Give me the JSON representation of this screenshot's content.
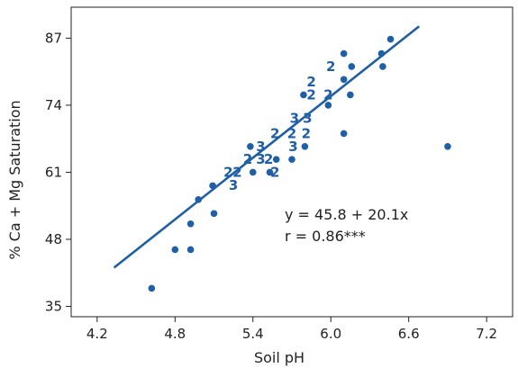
{
  "chart_data": {
    "type": "scatter",
    "title": "",
    "xlabel": "Soil pH",
    "ylabel": "% Ca + Mg Saturation",
    "xlim": [
      4.0,
      7.4
    ],
    "ylim": [
      33,
      93
    ],
    "xticks": [
      4.2,
      4.8,
      5.4,
      6.0,
      6.6,
      7.2
    ],
    "xtick_labels": [
      "4.2",
      "4.8",
      "5.4",
      "6.0",
      "6.6",
      "7.2"
    ],
    "yticks": [
      35,
      48,
      61,
      74,
      87
    ],
    "ytick_labels": [
      "35",
      "48",
      "61",
      "74",
      "87"
    ],
    "grid": false,
    "colors": {
      "marker": "#1f5fa6",
      "line": "#1f5fa6",
      "axis": "#222222"
    },
    "points": [
      {
        "x": 4.62,
        "y": 38.5
      },
      {
        "x": 4.8,
        "y": 46.0
      },
      {
        "x": 4.92,
        "y": 46.0
      },
      {
        "x": 4.92,
        "y": 51.0
      },
      {
        "x": 4.98,
        "y": 55.7
      },
      {
        "x": 5.09,
        "y": 58.4
      },
      {
        "x": 5.1,
        "y": 53.0
      },
      {
        "x": 5.38,
        "y": 66.0
      },
      {
        "x": 5.4,
        "y": 61.0
      },
      {
        "x": 5.53,
        "y": 61.0
      },
      {
        "x": 5.58,
        "y": 63.5
      },
      {
        "x": 5.7,
        "y": 63.5
      },
      {
        "x": 5.79,
        "y": 76.0
      },
      {
        "x": 5.8,
        "y": 66.0
      },
      {
        "x": 5.98,
        "y": 74.0
      },
      {
        "x": 6.1,
        "y": 68.5
      },
      {
        "x": 6.1,
        "y": 84.0
      },
      {
        "x": 6.1,
        "y": 79.0
      },
      {
        "x": 6.15,
        "y": 76.0
      },
      {
        "x": 6.16,
        "y": 81.5
      },
      {
        "x": 6.39,
        "y": 84.0
      },
      {
        "x": 6.4,
        "y": 81.5
      },
      {
        "x": 6.46,
        "y": 86.8
      },
      {
        "x": 6.9,
        "y": 66.0
      }
    ],
    "count_labels": [
      {
        "x": 5.21,
        "y": 61.0,
        "text": "2"
      },
      {
        "x": 5.28,
        "y": 61.0,
        "text": "2"
      },
      {
        "x": 5.25,
        "y": 58.5,
        "text": "3"
      },
      {
        "x": 5.36,
        "y": 63.5,
        "text": "2"
      },
      {
        "x": 5.46,
        "y": 66.0,
        "text": "3"
      },
      {
        "x": 5.46,
        "y": 63.5,
        "text": "3"
      },
      {
        "x": 5.52,
        "y": 63.5,
        "text": "2"
      },
      {
        "x": 5.57,
        "y": 61.0,
        "text": "2"
      },
      {
        "x": 5.57,
        "y": 68.5,
        "text": "2"
      },
      {
        "x": 5.7,
        "y": 68.5,
        "text": "2"
      },
      {
        "x": 5.71,
        "y": 66.0,
        "text": "3"
      },
      {
        "x": 5.72,
        "y": 71.5,
        "text": "3"
      },
      {
        "x": 5.82,
        "y": 71.5,
        "text": "3"
      },
      {
        "x": 5.81,
        "y": 68.5,
        "text": "2"
      },
      {
        "x": 5.85,
        "y": 76.0,
        "text": "2"
      },
      {
        "x": 5.85,
        "y": 78.5,
        "text": "2"
      },
      {
        "x": 5.98,
        "y": 76.0,
        "text": "2"
      },
      {
        "x": 6.0,
        "y": 81.5,
        "text": "2"
      }
    ],
    "regression": {
      "intercept": 45.8,
      "slope": 20.1,
      "x_start": 4.33,
      "x_end": 6.68
    },
    "annotations": [
      "y = 45.8 + 20.1x",
      "r = 0.86***"
    ]
  }
}
